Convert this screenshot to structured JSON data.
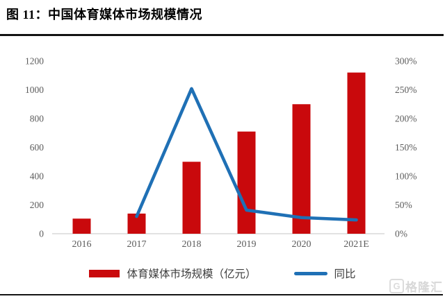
{
  "header": {
    "title": "图 11：中国体育媒体市场规模情况"
  },
  "watermark": {
    "icon_letter": "G",
    "logo_text": "格隆汇"
  },
  "chart_data": {
    "type": "bar",
    "subtype": "combo-bar-line",
    "categories": [
      "2016",
      "2017",
      "2018",
      "2019",
      "2020",
      "2021E"
    ],
    "series": [
      {
        "name": "体育媒体市场规模（亿元）",
        "type": "bar",
        "axis": "left",
        "color": "#c9090c",
        "values": [
          105,
          140,
          500,
          710,
          900,
          1120
        ]
      },
      {
        "name": "同比",
        "type": "line",
        "axis": "right",
        "color": "#1f70b5",
        "values": [
          null,
          30,
          252,
          41,
          28,
          24
        ]
      }
    ],
    "left_axis": {
      "min": 0,
      "max": 1200,
      "ticks": [
        0,
        200,
        400,
        600,
        800,
        1000,
        1200
      ]
    },
    "right_axis": {
      "min": 0,
      "max": 300,
      "tick_labels": [
        "0%",
        "50%",
        "100%",
        "150%",
        "200%",
        "250%",
        "300%"
      ]
    },
    "grid": false,
    "legend_position": "bottom",
    "axis_text_color": "#5b5b5b",
    "baseline_color": "#d9d9d9"
  }
}
